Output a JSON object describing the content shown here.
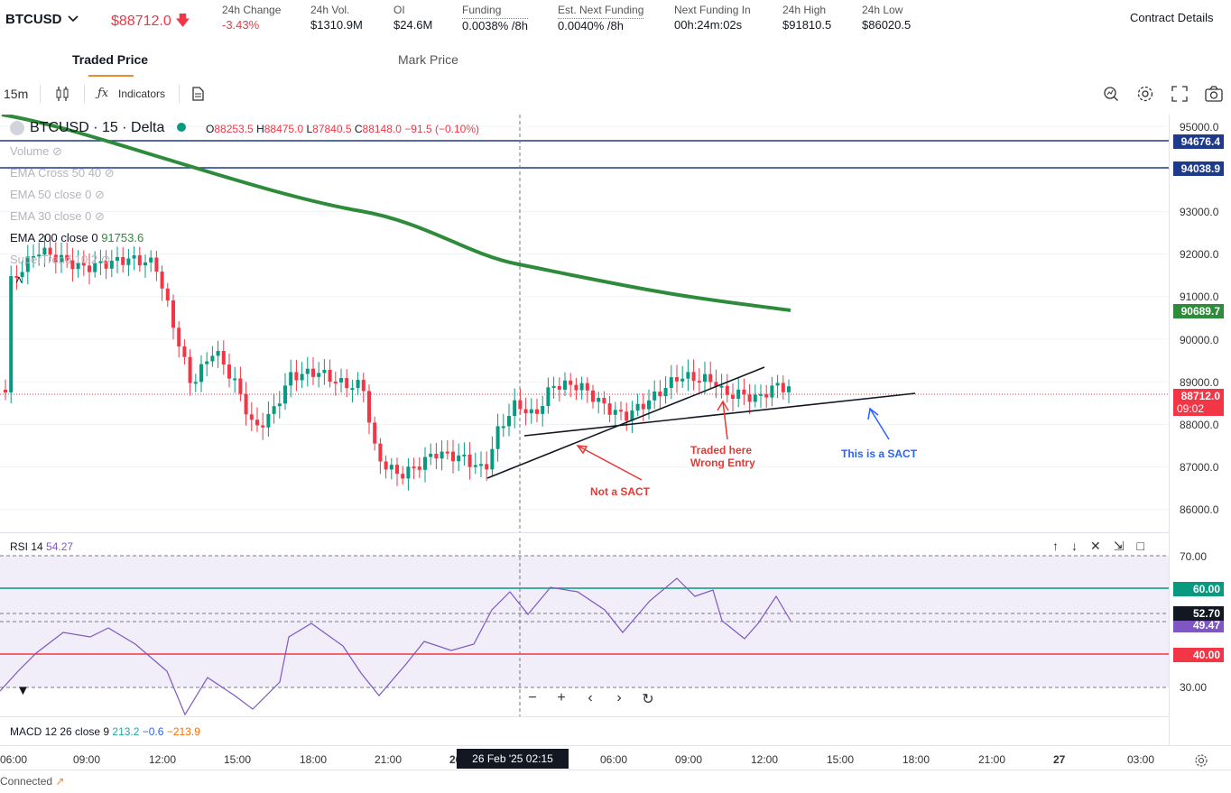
{
  "ticker": {
    "symbol": "BTCUSD",
    "price": "$88712.0",
    "stats": [
      {
        "label": "24h Change",
        "value": "-3.43%"
      },
      {
        "label": "24h Vol.",
        "value": "$1310.9M"
      },
      {
        "label": "OI",
        "value": "$24.6M"
      },
      {
        "label": "Funding",
        "value": "0.0038% /8h"
      },
      {
        "label": "Est. Next Funding",
        "value": "0.0040% /8h"
      },
      {
        "label": "Next Funding In",
        "value": "00h:24m:02s"
      },
      {
        "label": "24h High",
        "value": "$91810.5"
      },
      {
        "label": "24h Low",
        "value": "$86020.5"
      }
    ],
    "contract_details": "Contract Details"
  },
  "tabs": [
    "Traded Price",
    "Mark Price"
  ],
  "toolbar": {
    "interval": "15m",
    "indicators": "Indicators"
  },
  "chart": {
    "title": "BTCUSD · 15 · Delta",
    "ohlc": {
      "o": "88253.5",
      "h": "88475.0",
      "l": "87840.5",
      "c": "88148.0",
      "chg": "−91.5 (−0.10%)"
    },
    "legend": {
      "volume": "Volume",
      "ema_cross": "EMA Cross 50 40",
      "ema50": "EMA 50 close 0",
      "ema30": "EMA 30 close 0",
      "ema200": "EMA 200 close 0",
      "ema200_val": "91753.6",
      "supertrend": "SuperTrend 10 2"
    },
    "price_axis": [
      "95000.0",
      "93000.0",
      "92000.0",
      "91000.0",
      "90000.0",
      "89000.0",
      "88000.0",
      "87000.0",
      "86000.0"
    ],
    "tags": {
      "line1": "94676.4",
      "line2": "94038.9",
      "ema": "90689.7",
      "last": "88712.0",
      "countdown": "09:02"
    },
    "annotations": {
      "not_sact": "Not a SACT",
      "traded_here": "Traded here",
      "wrong_entry": "Wrong Entry",
      "sact": "This is a SACT"
    }
  },
  "rsi": {
    "label": "RSI 14",
    "value": "54.27",
    "axis": [
      "70.00",
      "30.00"
    ],
    "tags": {
      "upper": "60.00",
      "current": "52.70",
      "ma": "49.47",
      "lower": "40.00"
    }
  },
  "macd": {
    "label": "MACD 12 26 close 9",
    "v1": "213.2",
    "v2": "−0.6",
    "v3": "−213.9"
  },
  "time_axis": [
    "06:00",
    "09:00",
    "12:00",
    "15:00",
    "18:00",
    "21:00",
    "26",
    "06:00",
    "09:00",
    "12:00",
    "15:00",
    "18:00",
    "21:00",
    "27",
    "03:00"
  ],
  "cursor_date": "26 Feb '25   02:15",
  "status": "Connected",
  "colors": {
    "up": "#089981",
    "down": "#f23645",
    "ema200": "#2e8b3a",
    "hline": "#1e3a8a",
    "rsi": "#7e57c2",
    "annotation_red": "#e53935",
    "annotation_blue": "#2962ff"
  }
}
